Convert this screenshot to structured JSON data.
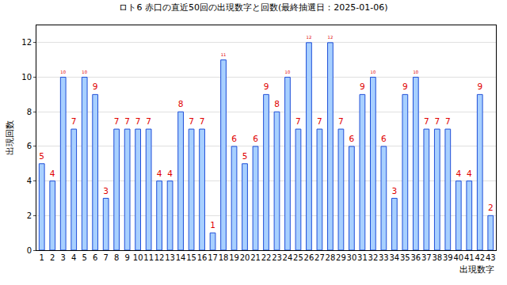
{
  "chart_data": {
    "type": "bar",
    "title": "ロト6 赤口の直近50回の出現数字と回数(最終抽選日：2025-01-06)",
    "x_label": "出現数字",
    "y_label": "出現回数",
    "categories": [
      1,
      2,
      3,
      4,
      5,
      6,
      7,
      8,
      9,
      10,
      11,
      12,
      13,
      14,
      15,
      16,
      17,
      18,
      19,
      20,
      21,
      22,
      23,
      24,
      25,
      26,
      27,
      28,
      29,
      30,
      31,
      32,
      33,
      34,
      35,
      36,
      37,
      38,
      39,
      40,
      41,
      42,
      43
    ],
    "values": [
      5,
      4,
      10,
      7,
      10,
      9,
      3,
      7,
      7,
      7,
      7,
      4,
      4,
      8,
      7,
      7,
      1,
      11,
      6,
      5,
      6,
      9,
      8,
      10,
      7,
      12,
      7,
      12,
      7,
      6,
      9,
      10,
      6,
      3,
      9,
      10,
      7,
      7,
      7,
      4,
      4,
      9,
      2
    ],
    "color": "#a8d0ff",
    "ylim": [
      0,
      13
    ],
    "yticks": [
      0,
      2,
      4,
      6,
      8,
      10,
      12
    ],
    "grid": true,
    "data_labels": true
  }
}
